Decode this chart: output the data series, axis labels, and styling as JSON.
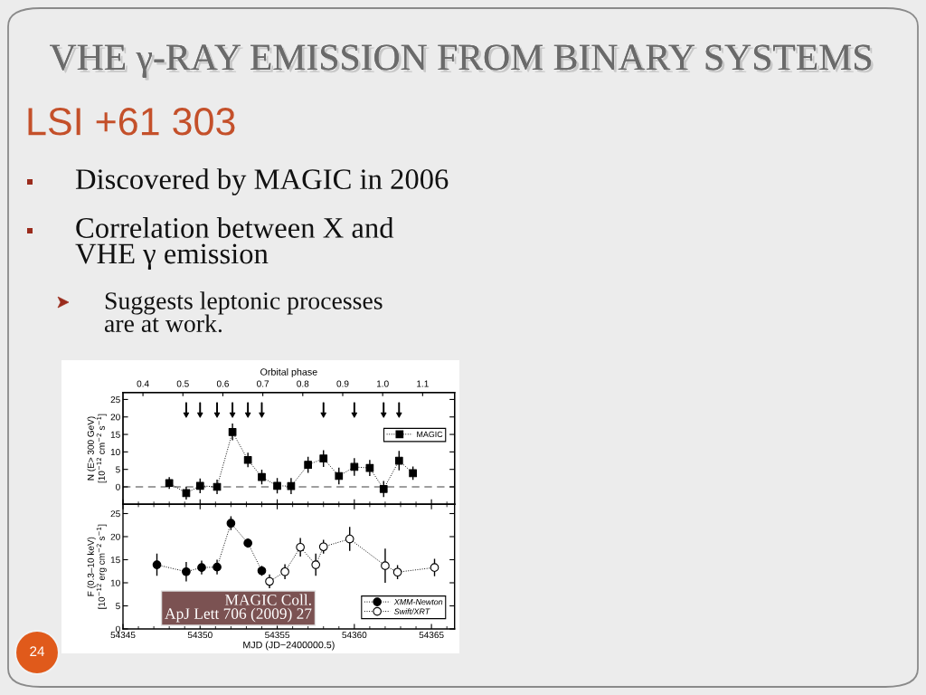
{
  "chart_data": [
    {
      "type": "line",
      "title": "VHE γ-RAY EMISSION FROM BINARY SYSTEMS",
      "subtitle": "LSI +61 303",
      "annotations": [
        "Discovered by MAGIC in 2006",
        "Correlation between X and\nVHE γ emission",
        "Suggests leptonic processes\nare at work.",
        "24"
      ],
      "ylabel": "N (E> 300 GeV)\n[10$^{−12}$ cm$^{−2}$ s$^{−1}$]",
      "x2label": "Orbital phase",
      "xlim": [
        54345,
        54366.5
      ],
      "xticks": [
        54345,
        {
          "value": 54346,
          "label": null
        },
        {
          "value": 54347,
          "label": null
        },
        {
          "value": 54348,
          "label": null
        },
        {
          "value": 54349,
          "label": null
        },
        54350,
        {
          "value": 54351,
          "label": null
        },
        {
          "value": 54352,
          "label": null
        },
        {
          "value": 54353,
          "label": null
        },
        {
          "value": 54354,
          "label": null
        },
        54355,
        {
          "value": 54356,
          "label": null
        },
        {
          "value": 54357,
          "label": null
        },
        {
          "value": 54358,
          "label": null
        },
        {
          "value": 54359,
          "label": null
        },
        54360,
        {
          "value": 54361,
          "label": null
        },
        {
          "value": 54362,
          "label": null
        },
        {
          "value": 54363,
          "label": null
        },
        {
          "value": 54364,
          "label": null
        },
        54365,
        {
          "value": 54366,
          "label": null
        }
      ],
      "x2lim": [
        0.35,
        1.18
      ],
      "x2ticks": [
        0.4,
        0.5,
        0.6,
        0.7,
        0.8,
        0.9,
        {
          "value": 1,
          "label": "1.0"
        },
        1.1
      ],
      "ylim": [
        -5,
        27
      ],
      "yticks": [
        0,
        5,
        10,
        15,
        20,
        25
      ],
      "ref_lines": [
        {
          "axis": "y",
          "value": 0,
          "line_style": "dashed",
          "color": "#808080"
        }
      ],
      "series": [
        {
          "name": "MAGIC",
          "marker": "square",
          "line_style": "dotted",
          "color": "#000000",
          "x": [
            54348.0,
            54349.1,
            54350.0,
            54351.1,
            54352.1,
            54353.1,
            54354.0,
            54355.0,
            54355.9,
            54357.0,
            54358.0,
            54359.0,
            54360.0,
            54361.0,
            54361.9,
            54362.9,
            54363.8
          ],
          "values": [
            1.1,
            -1.8,
            0.3,
            0.0,
            15.7,
            7.7,
            2.8,
            0.3,
            0.2,
            6.3,
            8.1,
            3.1,
            5.7,
            5.4,
            -0.6,
            7.5,
            3.9
          ],
          "errors": [
            1.7,
            1.8,
            2.1,
            2.1,
            2.4,
            2.1,
            2.1,
            2.2,
            2.3,
            2.3,
            2.4,
            2.4,
            2.5,
            2.3,
            2.3,
            2.8,
            1.9
          ]
        },
        {
          "type": "scatter",
          "marker": "triangle",
          "color": "#000000",
          "x": [
            54349.1,
            54350.0,
            54351.1,
            54352.1,
            54353.1,
            54354.0,
            54358.0,
            54360.0,
            54361.9,
            54362.9
          ],
          "values": [
            22,
            22,
            22,
            22,
            22,
            22,
            22,
            22,
            22,
            22
          ]
        }
      ],
      "legend": "right",
      "tick_labels": "y"
    },
    {
      "type": "line",
      "ylabel": "F (0.3–10 keV)\n[10$^{−12}$ erg cm$^{−2}$ s$^{−1}$]",
      "xlabel": "MJD (JD−2400000.5)",
      "annotations": [
        "MAGIC Coll.\nApJ Lett 706 (2009) 27"
      ],
      "xlim": [
        54345,
        54366.5
      ],
      "xticks": [
        54345,
        {
          "value": 54346,
          "label": null
        },
        {
          "value": 54347,
          "label": null
        },
        {
          "value": 54348,
          "label": null
        },
        {
          "value": 54349,
          "label": null
        },
        54350,
        {
          "value": 54351,
          "label": null
        },
        {
          "value": 54352,
          "label": null
        },
        {
          "value": 54353,
          "label": null
        },
        {
          "value": 54354,
          "label": null
        },
        54355,
        {
          "value": 54356,
          "label": null
        },
        {
          "value": 54357,
          "label": null
        },
        {
          "value": 54358,
          "label": null
        },
        {
          "value": 54359,
          "label": null
        },
        54360,
        {
          "value": 54361,
          "label": null
        },
        {
          "value": 54362,
          "label": null
        },
        {
          "value": 54363,
          "label": null
        },
        {
          "value": 54364,
          "label": null
        },
        54365,
        {
          "value": 54366,
          "label": null
        }
      ],
      "ylim": [
        0,
        27
      ],
      "yticks": [
        0,
        5,
        10,
        15,
        20,
        25
      ],
      "series": [
        {
          "name": "XMM-Newton",
          "marker": "circle",
          "line_style": "dotted",
          "color": "#000000",
          "x": [
            54347.2,
            54349.1,
            54350.1,
            54351.1,
            54352.0,
            54353.1,
            54354.0
          ],
          "values": [
            13.9,
            12.4,
            13.3,
            13.4,
            22.9,
            18.6,
            12.6
          ],
          "errors": [
            2.4,
            2.1,
            1.5,
            1.6,
            1.5,
            1.0,
            1.1
          ]
        },
        {
          "name": "Swift/XRT",
          "marker": "circle",
          "line_style": "dotted",
          "color": "#ffffff",
          "x": [
            54354.5,
            54355.5,
            54356.5,
            54357.5,
            54358.0,
            54359.7,
            54362.0,
            54362.8,
            54365.2
          ],
          "values": [
            10.3,
            12.4,
            17.7,
            13.9,
            17.8,
            19.5,
            13.7,
            12.3,
            13.3
          ],
          "errors": [
            1.5,
            1.6,
            2.0,
            2.4,
            1.5,
            2.6,
            3.7,
            1.5,
            1.9
          ]
        }
      ],
      "legend": "bottom right"
    }
  ]
}
